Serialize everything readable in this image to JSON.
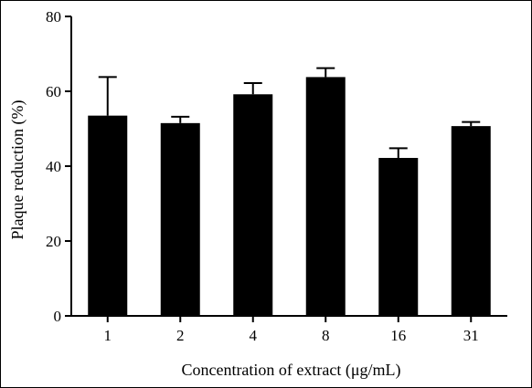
{
  "chart_data": {
    "type": "bar",
    "categories": [
      "1",
      "2",
      "4",
      "8",
      "16",
      "31"
    ],
    "values": [
      53.5,
      51.5,
      59.2,
      63.8,
      42.2,
      50.7
    ],
    "error_upper": [
      63.8,
      53.2,
      62.2,
      66.2,
      44.8,
      51.8
    ],
    "title": "",
    "xlabel": "Concentration of extract (μg/mL)",
    "ylabel": "Plaque reduction (%)",
    "ylim": [
      0,
      80
    ],
    "yticks": [
      "0",
      "20",
      "40",
      "60",
      "80"
    ],
    "grid": false,
    "bar_color": "#000000"
  }
}
